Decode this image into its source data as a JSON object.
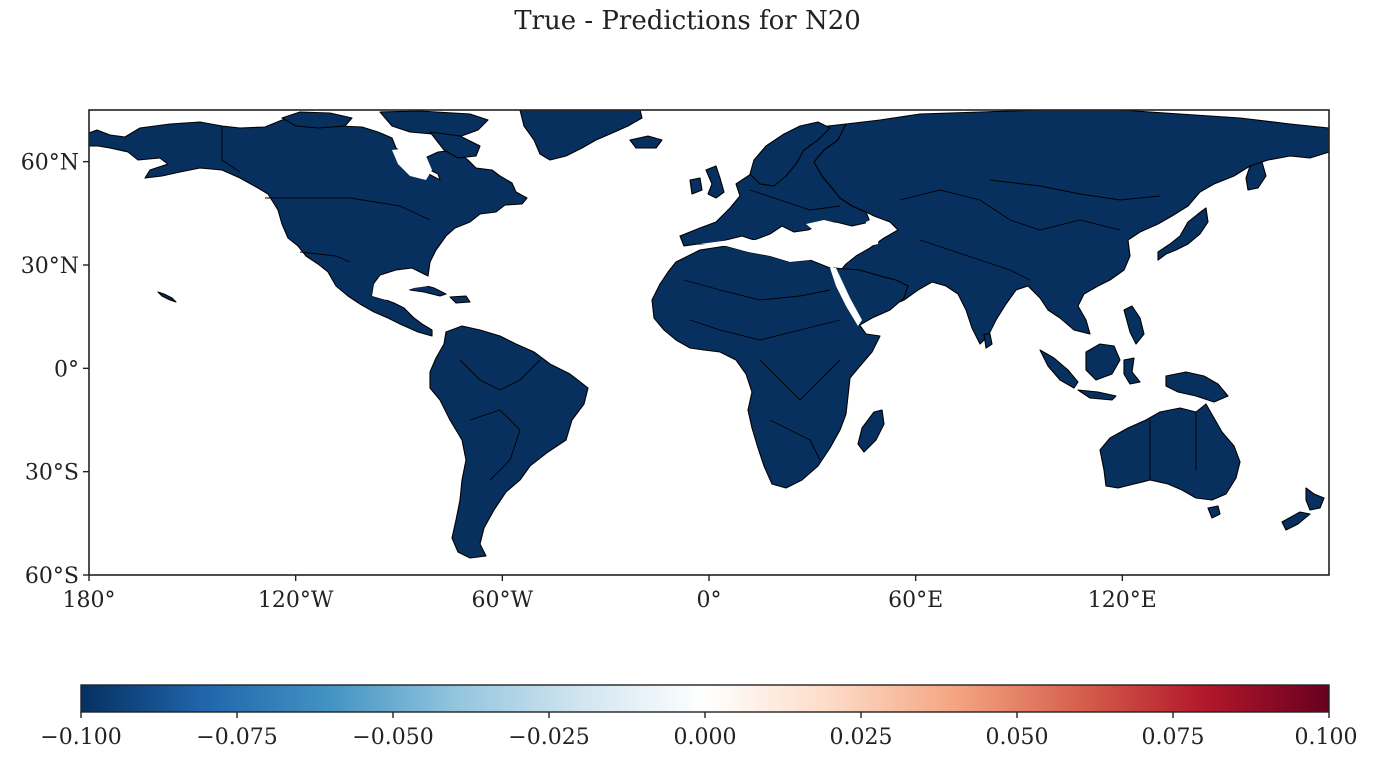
{
  "title": "True - Predictions for N20",
  "map": {
    "projection": "PlateCarree",
    "lon_range": [
      -180,
      180
    ],
    "lat_range": [
      -60,
      75
    ],
    "land_color": "#08305f",
    "ocean_color": "#ffffff",
    "x_ticks": [
      {
        "value": -180,
        "label": "180°"
      },
      {
        "value": -120,
        "label": "120°W"
      },
      {
        "value": -60,
        "label": "60°W"
      },
      {
        "value": 0,
        "label": "0°"
      },
      {
        "value": 60,
        "label": "60°E"
      },
      {
        "value": 120,
        "label": "120°E"
      }
    ],
    "y_ticks": [
      {
        "value": 60,
        "label": "60°N"
      },
      {
        "value": 30,
        "label": "30°N"
      },
      {
        "value": 0,
        "label": "0°"
      },
      {
        "value": -30,
        "label": "30°S"
      },
      {
        "value": -60,
        "label": "60°S"
      }
    ]
  },
  "colorbar": {
    "cmap": "RdBu_r",
    "range": [
      -0.1,
      0.1
    ],
    "colors": [
      "#053061",
      "#2166ac",
      "#4393c3",
      "#92c5de",
      "#d1e5f0",
      "#ffffff",
      "#fddbc7",
      "#f4a582",
      "#d6604d",
      "#b2182b",
      "#67001f"
    ],
    "ticks": [
      {
        "value": -0.1,
        "label": "−0.100"
      },
      {
        "value": -0.075,
        "label": "−0.075"
      },
      {
        "value": -0.05,
        "label": "−0.050"
      },
      {
        "value": -0.025,
        "label": "−0.025"
      },
      {
        "value": 0.0,
        "label": "0.000"
      },
      {
        "value": 0.025,
        "label": "0.025"
      },
      {
        "value": 0.05,
        "label": "0.050"
      },
      {
        "value": 0.075,
        "label": "0.075"
      },
      {
        "value": 0.1,
        "label": "0.100"
      }
    ]
  }
}
